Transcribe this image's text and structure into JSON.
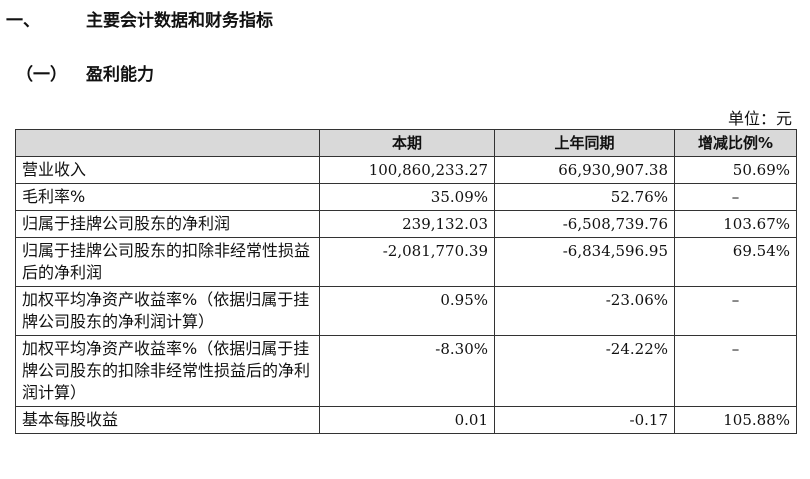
{
  "section1": {
    "number": "一、",
    "title": "主要会计数据和财务指标"
  },
  "section2": {
    "number": "（一）",
    "title": "盈利能力"
  },
  "unit_label": "单位：元",
  "table": {
    "headers": [
      "",
      "本期",
      "上年同期",
      "增减比例%"
    ],
    "rows": [
      {
        "label": "营业收入",
        "current": "100,860,233.27",
        "prior": "66,930,907.38",
        "change": "50.69%"
      },
      {
        "label": "毛利率%",
        "current": "35.09%",
        "prior": "52.76%",
        "change": "–"
      },
      {
        "label": "归属于挂牌公司股东的净利润",
        "current": "239,132.03",
        "prior": "-6,508,739.76",
        "change": "103.67%"
      },
      {
        "label": "归属于挂牌公司股东的扣除非经常性损益后的净利润",
        "current": "-2,081,770.39",
        "prior": "-6,834,596.95",
        "change": "69.54%"
      },
      {
        "label": "加权平均净资产收益率%（依据归属于挂牌公司股东的净利润计算）",
        "current": "0.95%",
        "prior": "-23.06%",
        "change": "–"
      },
      {
        "label": "加权平均净资产收益率%（依据归属于挂牌公司股东的扣除非经常性损益后的净利润计算）",
        "current": "-8.30%",
        "prior": "-24.22%",
        "change": "–"
      },
      {
        "label": "基本每股收益",
        "current": "0.01",
        "prior": "-0.17",
        "change": "105.88%"
      }
    ]
  }
}
